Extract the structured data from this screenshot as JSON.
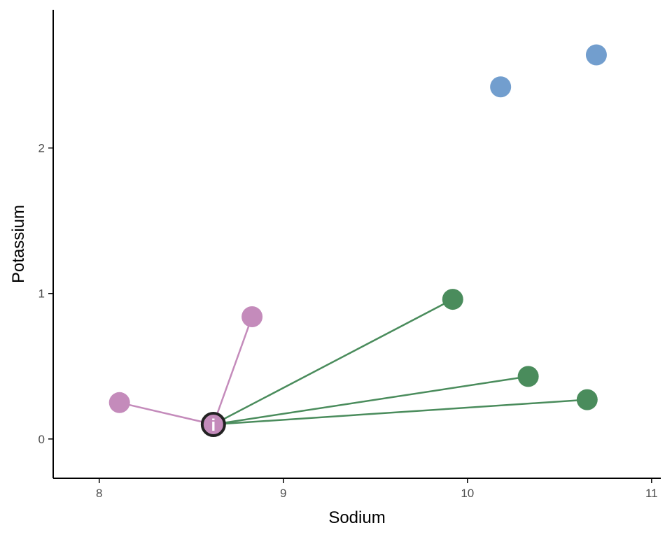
{
  "chart_data": {
    "type": "scatter",
    "xlabel": "Sodium",
    "ylabel": "Potassium",
    "xlim": [
      7.75,
      11.05
    ],
    "ylim": [
      -0.27,
      2.95
    ],
    "xticks": [
      8,
      9,
      10,
      11
    ],
    "yticks": [
      0,
      1,
      2
    ],
    "grid": false,
    "colors": {
      "blue": "#729ECE",
      "green": "#4A8C5C",
      "purple": "#C48BBB"
    },
    "series": [
      {
        "color": "#729ECE",
        "points": [
          {
            "x": 10.18,
            "y": 2.42
          },
          {
            "x": 10.7,
            "y": 2.64
          }
        ]
      },
      {
        "color": "#4A8C5C",
        "points": [
          {
            "x": 9.92,
            "y": 0.96
          },
          {
            "x": 10.33,
            "y": 0.43
          },
          {
            "x": 10.65,
            "y": 0.27
          }
        ]
      },
      {
        "color": "#C48BBB",
        "points": [
          {
            "x": 8.11,
            "y": 0.25
          },
          {
            "x": 8.83,
            "y": 0.84
          }
        ]
      }
    ],
    "query_point": {
      "x": 8.62,
      "y": 0.1,
      "color": "#C48BBB",
      "glyph": "i"
    },
    "neighbor_links": [
      {
        "x": 8.11,
        "y": 0.25,
        "color": "#C48BBB"
      },
      {
        "x": 8.83,
        "y": 0.84,
        "color": "#C48BBB"
      },
      {
        "x": 9.92,
        "y": 0.96,
        "color": "#4A8C5C"
      },
      {
        "x": 10.33,
        "y": 0.43,
        "color": "#4A8C5C"
      },
      {
        "x": 10.65,
        "y": 0.27,
        "color": "#4A8C5C"
      }
    ]
  }
}
